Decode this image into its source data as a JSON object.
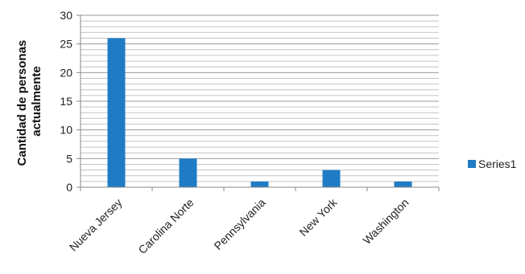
{
  "chart_data": {
    "type": "bar",
    "categories": [
      "Nueva Jersey",
      "Carolina Norte",
      "Pennsylvania",
      "New York",
      "Washington"
    ],
    "series": [
      {
        "name": "Series1",
        "values": [
          26,
          5,
          1,
          3,
          1
        ],
        "color": "#1f7cc4"
      }
    ],
    "xlabel": "",
    "ylabel": [
      "Cantidad de personas",
      "actualmente"
    ],
    "ylim": [
      0,
      30
    ],
    "yticks": [
      0,
      5,
      10,
      15,
      20,
      25,
      30
    ],
    "grid": true,
    "legend_position": "right"
  }
}
